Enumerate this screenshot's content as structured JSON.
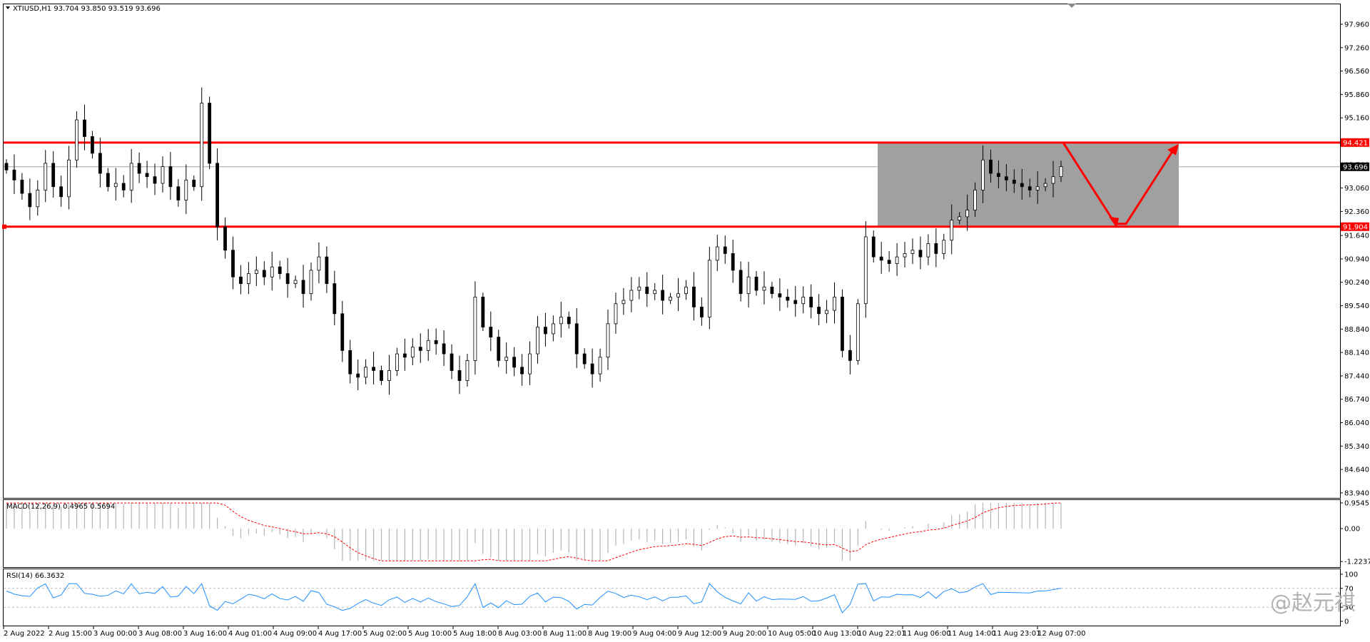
{
  "symbol_header": "XTIUSD,H1  93.704 93.850 93.519 93.696",
  "watermark": "@赵元祺",
  "price_lines": {
    "upper": "94.421",
    "lower": "91.904",
    "current": "93.696"
  },
  "colors": {
    "resistance": "#ff0000",
    "box": "#a0a0a0",
    "macd_signal": "#ff0000",
    "rsi": "#1e90ff",
    "bull_candle": "#ffffff",
    "bear_candle": "#000000"
  },
  "chart_data": [
    {
      "type": "candlestick",
      "title": "XTIUSD,H1",
      "ylim": [
        83.94,
        98.0
      ],
      "y_ticks": [
        "97.960",
        "97.260",
        "96.560",
        "95.860",
        "95.160",
        "94.460",
        "93.760",
        "93.060",
        "92.360",
        "91.640",
        "90.940",
        "90.240",
        "89.540",
        "88.840",
        "88.140",
        "87.440",
        "86.740",
        "86.040",
        "85.340",
        "84.640",
        "83.940"
      ],
      "x_ticks": [
        "2 Aug 2022",
        "2 Aug 15:00",
        "3 Aug 00:00",
        "3 Aug 08:00",
        "3 Aug 16:00",
        "4 Aug 01:00",
        "4 Aug 09:00",
        "4 Aug 17:00",
        "5 Aug 02:00",
        "5 Aug 10:00",
        "5 Aug 18:00",
        "8 Aug 03:00",
        "8 Aug 11:00",
        "8 Aug 19:00",
        "9 Aug 04:00",
        "9 Aug 12:00",
        "9 Aug 20:00",
        "10 Aug 05:00",
        "10 Aug 13:00",
        "10 Aug 22:01",
        "11 Aug 06:00",
        "11 Aug 14:00",
        "11 Aug 23:01",
        "12 Aug 07:00"
      ],
      "close": [
        93.6,
        93.3,
        92.9,
        92.5,
        93.0,
        93.8,
        93.1,
        92.8,
        93.9,
        95.1,
        94.6,
        94.1,
        93.5,
        93.1,
        93.2,
        93.0,
        93.8,
        93.5,
        93.4,
        93.2,
        93.7,
        93.1,
        92.7,
        93.3,
        93.1,
        95.6,
        93.8,
        91.9,
        91.2,
        90.4,
        90.2,
        90.5,
        90.6,
        90.4,
        90.7,
        90.5,
        90.2,
        90.3,
        89.9,
        90.6,
        91.0,
        90.2,
        89.3,
        88.2,
        87.5,
        87.4,
        87.7,
        87.6,
        87.3,
        87.6,
        88.1,
        88.0,
        88.3,
        88.2,
        88.5,
        88.4,
        88.1,
        87.6,
        87.3,
        87.9,
        89.8,
        88.9,
        88.6,
        87.9,
        88.0,
        87.7,
        87.5,
        88.1,
        88.9,
        88.7,
        89.0,
        89.2,
        89.0,
        88.1,
        87.8,
        87.5,
        88.0,
        89.0,
        89.6,
        89.7,
        90.0,
        90.1,
        89.9,
        90.0,
        89.7,
        89.8,
        89.9,
        90.1,
        89.5,
        89.2,
        90.9,
        91.3,
        91.1,
        90.6,
        89.9,
        90.4,
        90.0,
        90.1,
        89.9,
        89.8,
        89.7,
        89.6,
        89.8,
        89.5,
        89.3,
        89.4,
        89.8,
        88.2,
        87.9,
        89.6,
        91.6,
        91.0,
        90.9,
        90.8,
        91.0,
        91.1,
        91.2,
        91.0,
        91.4,
        91.1,
        91.5,
        92.1,
        92.2,
        92.4,
        93.0,
        93.9,
        93.5,
        93.4,
        93.3,
        93.2,
        93.1,
        93.0,
        93.1,
        93.2,
        93.4,
        93.7
      ],
      "resistance": 94.421,
      "support": 91.904,
      "last_price": 93.696
    },
    {
      "type": "histogram+line",
      "title": "MACD(12,26,9) 0.4965 0.5694",
      "y_ticks": [
        "0.9545",
        "0.00",
        "-1.2237"
      ],
      "ylim": [
        -1.2237,
        0.9545
      ]
    },
    {
      "type": "line",
      "title": "RSI(14) 66.3632",
      "y_ticks": [
        "100",
        "70",
        "30",
        "0"
      ],
      "ylim": [
        0,
        100
      ],
      "levels": [
        70,
        30
      ]
    }
  ]
}
